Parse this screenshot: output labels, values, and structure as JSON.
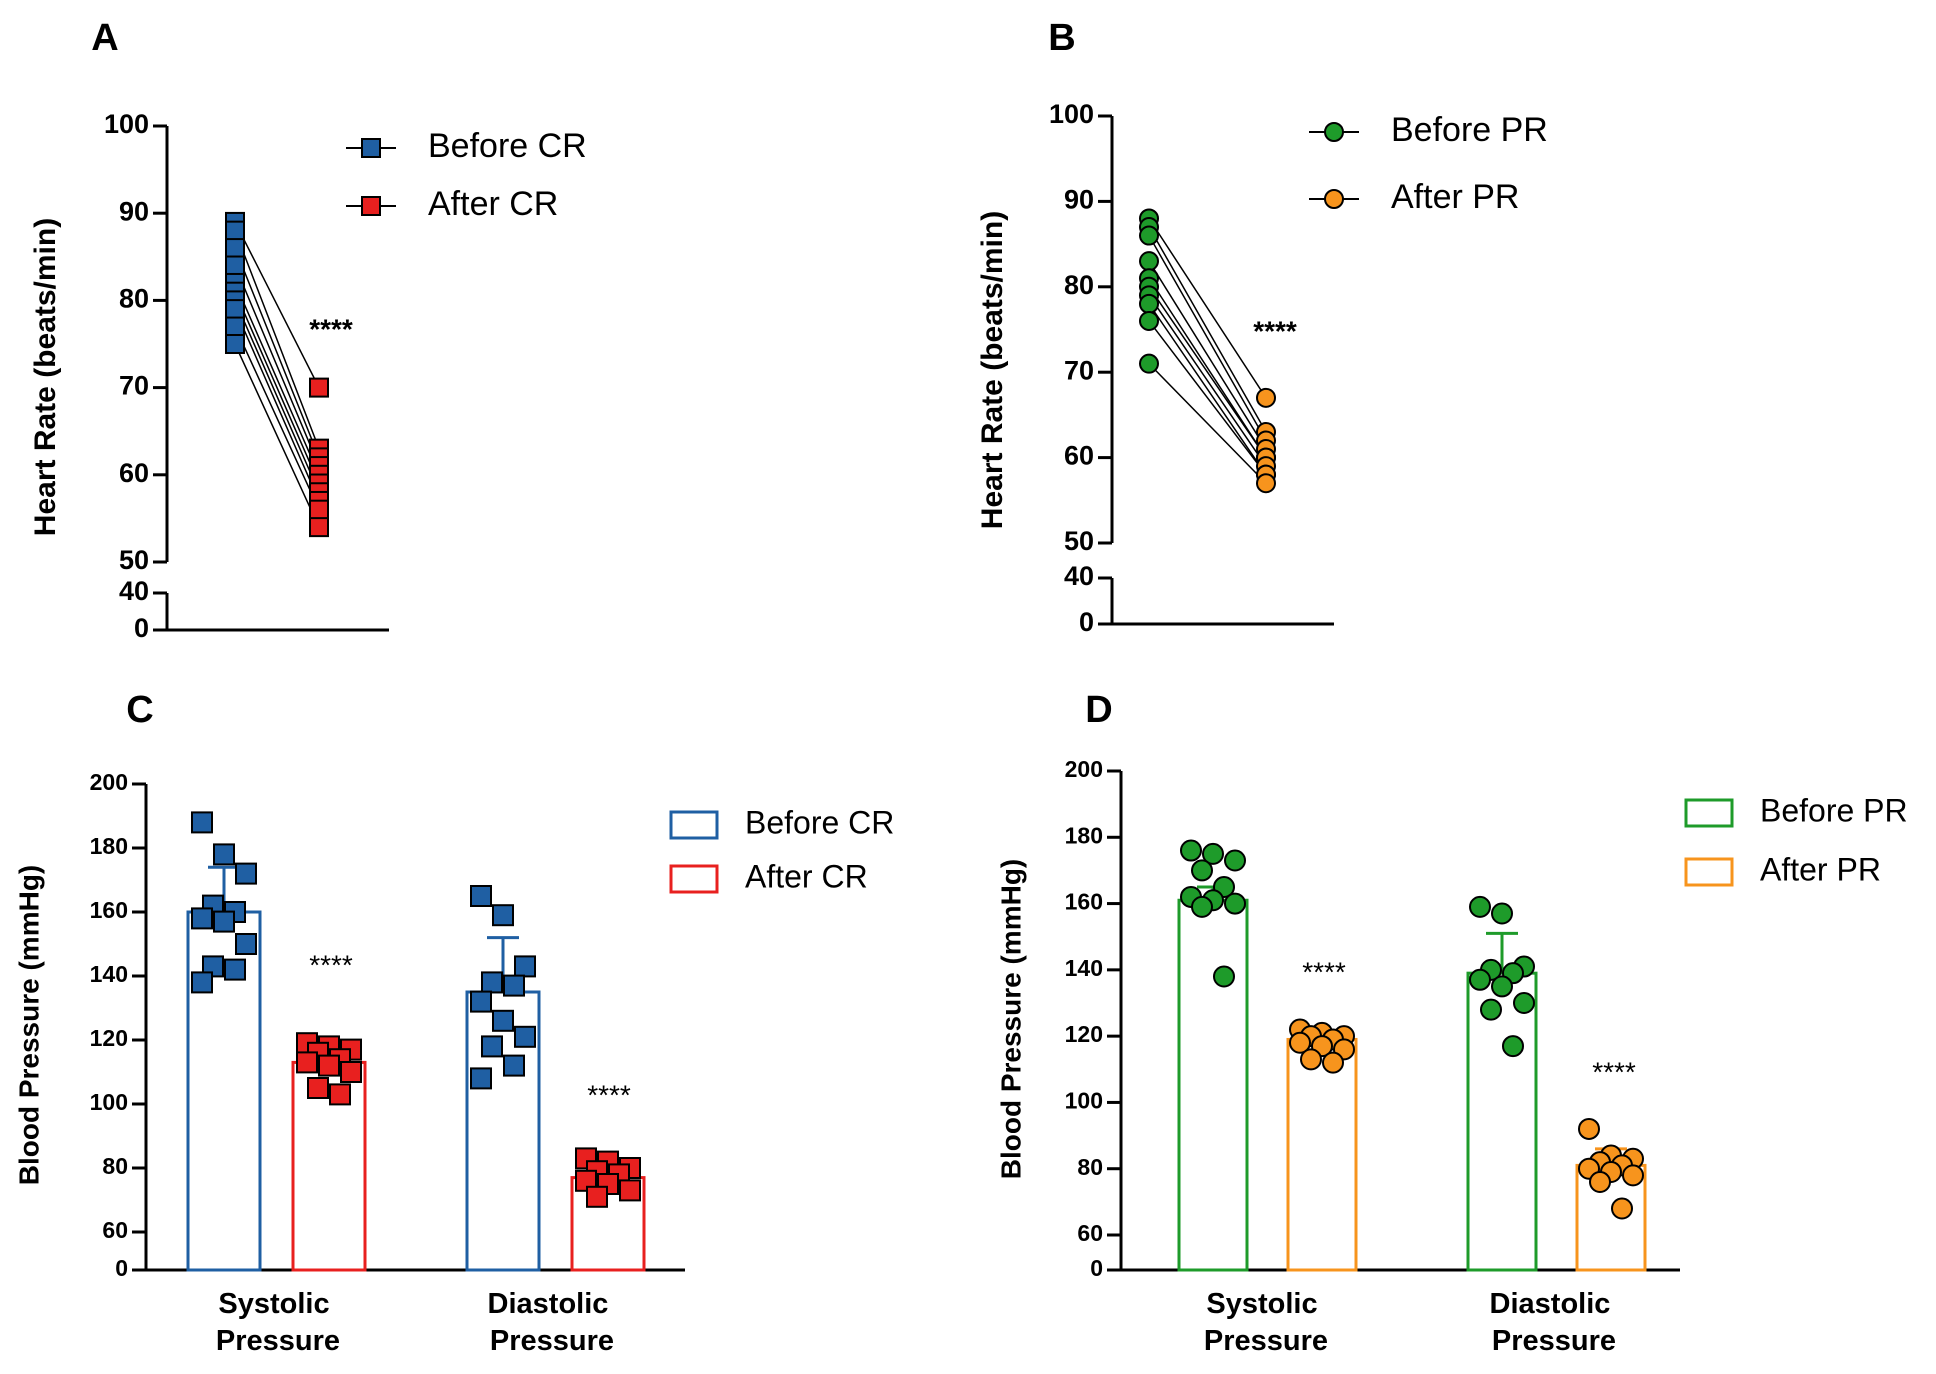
{
  "chart_data": [
    {
      "type": "paired",
      "label": "A",
      "ylabel": "Heart Rate (beats/min)",
      "ylim": [
        0,
        100
      ],
      "axis_break": [
        40,
        50
      ],
      "yticks": [
        0,
        40,
        50,
        60,
        70,
        80,
        90,
        100
      ],
      "series": [
        {
          "name": "Before CR",
          "color": "#1f5fa3",
          "marker": "square",
          "values": [
            89,
            88,
            86,
            84,
            82,
            81,
            80,
            79,
            77,
            75
          ]
        },
        {
          "name": "After CR",
          "color": "#e8201f",
          "marker": "square",
          "values": [
            70,
            63,
            62,
            61,
            60,
            59,
            58,
            57,
            56,
            54
          ]
        }
      ],
      "annotations": [
        "****"
      ]
    },
    {
      "type": "paired",
      "label": "B",
      "ylabel": "Heart Rate (beats/min)",
      "ylim": [
        0,
        100
      ],
      "axis_break": [
        40,
        50
      ],
      "yticks": [
        0,
        40,
        50,
        60,
        70,
        80,
        90,
        100
      ],
      "series": [
        {
          "name": "Before PR",
          "color": "#1e9b2a",
          "marker": "circle",
          "values": [
            88,
            87,
            86,
            83,
            81,
            80,
            79,
            78,
            76,
            71
          ]
        },
        {
          "name": "After PR",
          "color": "#f7941d",
          "marker": "circle",
          "values": [
            67,
            63,
            62,
            61,
            60,
            60,
            59,
            58,
            58,
            57
          ]
        }
      ],
      "annotations": [
        "****"
      ]
    },
    {
      "type": "bar",
      "label": "C",
      "ylabel": "Blood Pressure (mmHg)",
      "categories": [
        "Systolic Pressure",
        "Diastolic Pressure"
      ],
      "ylim": [
        0,
        200
      ],
      "axis_break": [
        60,
        60
      ],
      "yticks": [
        0,
        60,
        80,
        100,
        120,
        140,
        160,
        180,
        200
      ],
      "marker": "square",
      "series": [
        {
          "name": "Before CR",
          "color": "#1f5fa3",
          "values": [
            160,
            135
          ],
          "errors": [
            14,
            17
          ],
          "points": [
            [
              188,
              178,
              172,
              162,
              160,
              158,
              157,
              150,
              143,
              142,
              138
            ],
            [
              165,
              159,
              143,
              138,
              137,
              132,
              126,
              121,
              118,
              112,
              108
            ]
          ]
        },
        {
          "name": "After CR",
          "color": "#e8201f",
          "values": [
            113,
            77
          ],
          "errors": [
            5,
            4
          ],
          "points": [
            [
              119,
              118,
              117,
              116,
              114,
              113,
              112,
              110,
              105,
              103
            ],
            [
              83,
              82,
              80,
              79,
              78,
              76,
              75,
              73,
              71
            ]
          ]
        }
      ],
      "annotations": [
        "****",
        "****"
      ]
    },
    {
      "type": "bar",
      "label": "D",
      "ylabel": "Blood Pressure (mmHg)",
      "categories": [
        "Systolic Pressure",
        "Diastolic Pressure"
      ],
      "ylim": [
        0,
        200
      ],
      "axis_break": [
        60,
        60
      ],
      "yticks": [
        0,
        60,
        80,
        100,
        120,
        140,
        160,
        180,
        200
      ],
      "marker": "circle",
      "series": [
        {
          "name": "Before PR",
          "color": "#1e9b2a",
          "values": [
            161,
            139
          ],
          "errors": [
            4,
            12
          ],
          "points": [
            [
              176,
              175,
              173,
              170,
              165,
              162,
              161,
              160,
              159,
              138
            ],
            [
              159,
              157,
              141,
              140,
              139,
              137,
              135,
              130,
              128,
              117
            ]
          ]
        },
        {
          "name": "After PR",
          "color": "#f7941d",
          "values": [
            119,
            81
          ],
          "errors": [
            2,
            5
          ],
          "points": [
            [
              122,
              121,
              120,
              120,
              119,
              118,
              117,
              116,
              113,
              112
            ],
            [
              92,
              84,
              83,
              82,
              81,
              80,
              79,
              78,
              76,
              68
            ]
          ]
        }
      ],
      "annotations": [
        "****",
        "****"
      ]
    }
  ]
}
